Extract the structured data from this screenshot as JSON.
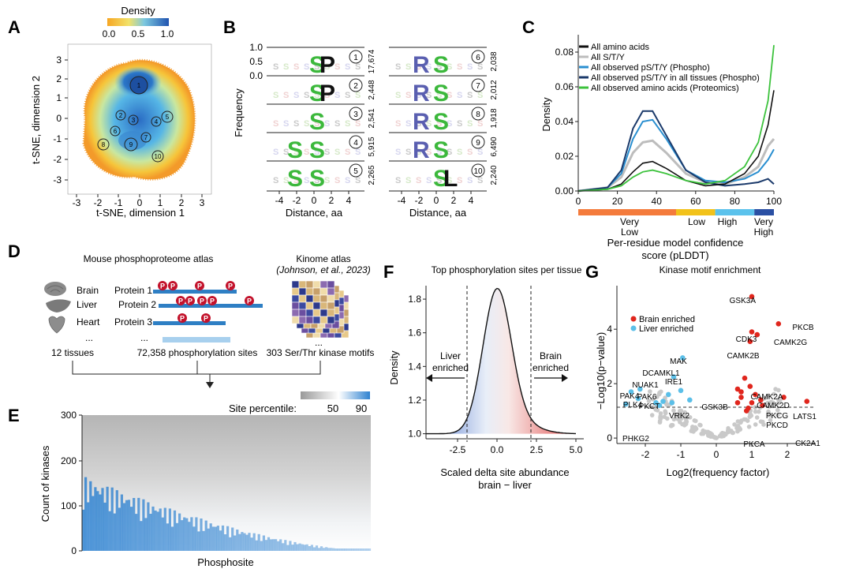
{
  "panel_letters": [
    "A",
    "B",
    "C",
    "D",
    "E",
    "F",
    "G"
  ],
  "panelA": {
    "colorbar_title": "Density",
    "colorbar_ticks": [
      "0.0",
      "0.5",
      "1.0"
    ],
    "xlabel": "t-SNE, dimension 1",
    "ylabel": "t-SNE, dimension 2",
    "xticks": [
      "-3",
      "-2",
      "-1",
      "0",
      "1",
      "2",
      "3"
    ],
    "yticks": [
      "3",
      "2",
      "1",
      "0",
      "-1",
      "-2",
      "-3"
    ],
    "clusters": [
      "1",
      "2",
      "3",
      "4",
      "5",
      "6",
      "7",
      "8",
      "9",
      "10"
    ]
  },
  "panelB": {
    "ylabel": "Frequency",
    "xlabel": "Distance, aa",
    "yticks": [
      "1.0",
      "0.5",
      "0.0"
    ],
    "xticks": [
      "-4",
      "-2",
      "0",
      "2",
      "4"
    ],
    "motifs_left": [
      {
        "num": "1",
        "count": "17,674",
        "letters": "S P"
      },
      {
        "num": "2",
        "count": "2,448",
        "letters": "S P"
      },
      {
        "num": "3",
        "count": "2,541",
        "letters": "S"
      },
      {
        "num": "4",
        "count": "5,915",
        "letters": "S S"
      },
      {
        "num": "5",
        "count": "2,265",
        "letters": "S S"
      }
    ],
    "motifs_right": [
      {
        "num": "6",
        "count": "2,038",
        "letters": "R S"
      },
      {
        "num": "7",
        "count": "2,012",
        "letters": "R S"
      },
      {
        "num": "8",
        "count": "1,918",
        "letters": "R S"
      },
      {
        "num": "9",
        "count": "6,490",
        "letters": "R S"
      },
      {
        "num": "10",
        "count": "2,240",
        "letters": "S L"
      }
    ]
  },
  "panelC": {
    "ylabel": "Density",
    "xlabel_line1": "Per-residue model confidence",
    "xlabel_line2": "score (pLDDT)",
    "xticks": [
      "0",
      "20",
      "40",
      "60",
      "80",
      "100"
    ],
    "yticks": [
      "0.00",
      "0.02",
      "0.04",
      "0.06",
      "0.08"
    ],
    "legend": [
      {
        "label": "All amino acids",
        "color": "#111111"
      },
      {
        "label": "All S/T/Y",
        "color": "#bdbdbd"
      },
      {
        "label": "All observed pS/T/Y (Phospho)",
        "color": "#2a8fd0"
      },
      {
        "label": "All observed pS/T/Y in all tissues (Phospho)",
        "color": "#1b3a6b"
      },
      {
        "label": "All observed amino acids (Proteomics)",
        "color": "#3cc23c"
      }
    ],
    "conf_bar": [
      {
        "label1": "Very",
        "label2": "Low",
        "color": "#f47b3c"
      },
      {
        "label1": "Low",
        "label2": "",
        "color": "#f2c21a"
      },
      {
        "label1": "High",
        "label2": "",
        "color": "#5bc2ec"
      },
      {
        "label1": "Very",
        "label2": "High",
        "color": "#2a4fa3"
      }
    ]
  },
  "panelD": {
    "title": "Mouse phosphoproteome atlas",
    "tissues": [
      "Brain",
      "Liver",
      "Heart",
      "..."
    ],
    "proteins": [
      "Protein 1",
      "Protein 2",
      "Protein 3",
      "..."
    ],
    "phospho_mark": "P",
    "kinome_title": "Kinome atlas",
    "kinome_citation": "(Johnson, et al., 2023)",
    "kinome_dots": "...",
    "summary_tissues": "12 tissues",
    "summary_sites": "72,358 phosphorylation sites",
    "summary_motifs": "303 Ser/Thr kinase motifs"
  },
  "panelE": {
    "legend_title": "Site percentile:",
    "legend_ticks": [
      "50",
      "90"
    ],
    "ylabel": "Count of kinases",
    "xlabel": "Phosphosite",
    "yticks": [
      "300",
      "200",
      "100",
      "0"
    ]
  },
  "panelF": {
    "title": "Top phosphorylation sites per tissue",
    "ylabel": "Density",
    "xlabel_line1": "Scaled delta site abundance",
    "xlabel_line2": "brain − liver",
    "xticks": [
      "-2.5",
      "0.0",
      "2.5",
      "5.0"
    ],
    "yticks": [
      "1.8",
      "1.6",
      "1.4",
      "1.2",
      "1.0"
    ],
    "left_note": [
      "Liver",
      "enriched"
    ],
    "right_note": [
      "Brain",
      "enriched"
    ]
  },
  "panelG": {
    "title": "Kinase motif enrichment",
    "ylabel": "−Log10(p−value)",
    "xlabel": "Log2(frequency factor)",
    "xticks": [
      "-2",
      "-1",
      "0",
      "1",
      "2"
    ],
    "yticks": [
      "4",
      "2",
      "0"
    ],
    "legend": [
      {
        "label": "Brain enriched",
        "color": "#e0261d"
      },
      {
        "label": "Liver enriched",
        "color": "#5bbfe8"
      }
    ],
    "labels": [
      "GSK3A",
      "PKCB",
      "CDK3",
      "CAMK2G",
      "CAMK2B",
      "MAK",
      "DCAMKL1",
      "IRE1",
      "NUAK1",
      "PAK6",
      "PAK4",
      "PKCT",
      "VRK2",
      "PLK4",
      "PHKG2",
      "CAMK2A",
      "CAMK2D",
      "GSK3B",
      "PKCG",
      "PKCD",
      "LATS1",
      "PKCA",
      "CK2A1"
    ]
  }
}
